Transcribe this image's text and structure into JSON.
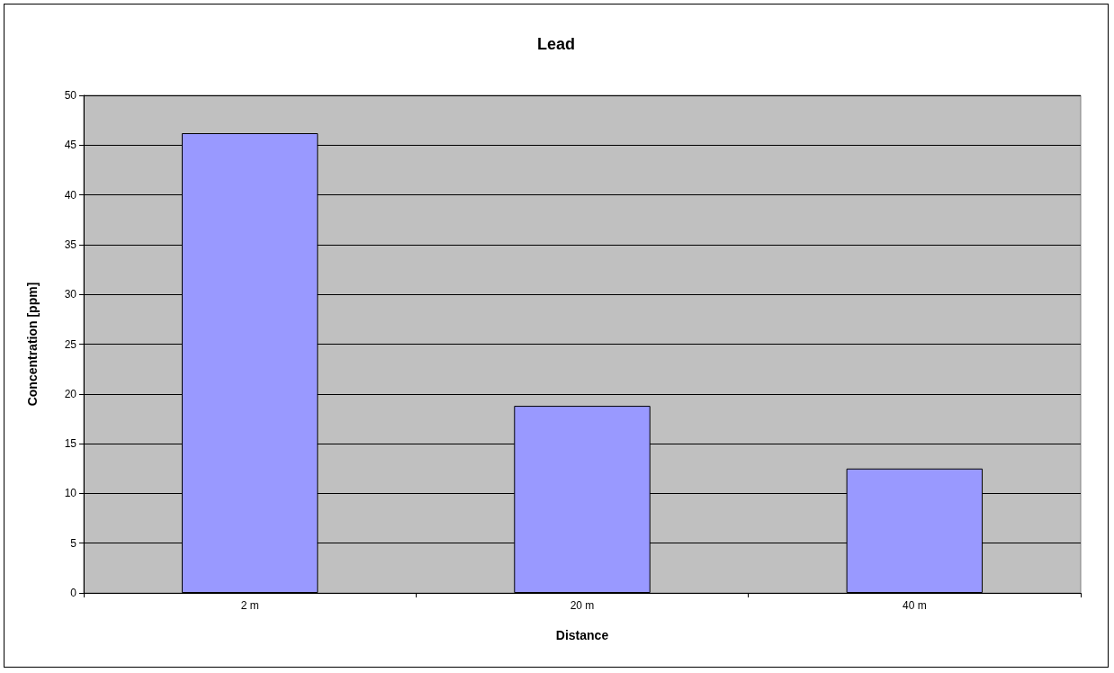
{
  "chart_data": {
    "type": "bar",
    "title": "Lead",
    "xlabel": "Distance",
    "ylabel": "Concentration [ppm]",
    "categories": [
      "2 m",
      "20 m",
      "40 m"
    ],
    "values": [
      46.2,
      18.8,
      12.5
    ],
    "color": "#9999ff",
    "ylim": [
      0,
      50
    ],
    "yticks": [
      0,
      5,
      10,
      15,
      20,
      25,
      30,
      35,
      40,
      45,
      50
    ],
    "grid": "y"
  }
}
